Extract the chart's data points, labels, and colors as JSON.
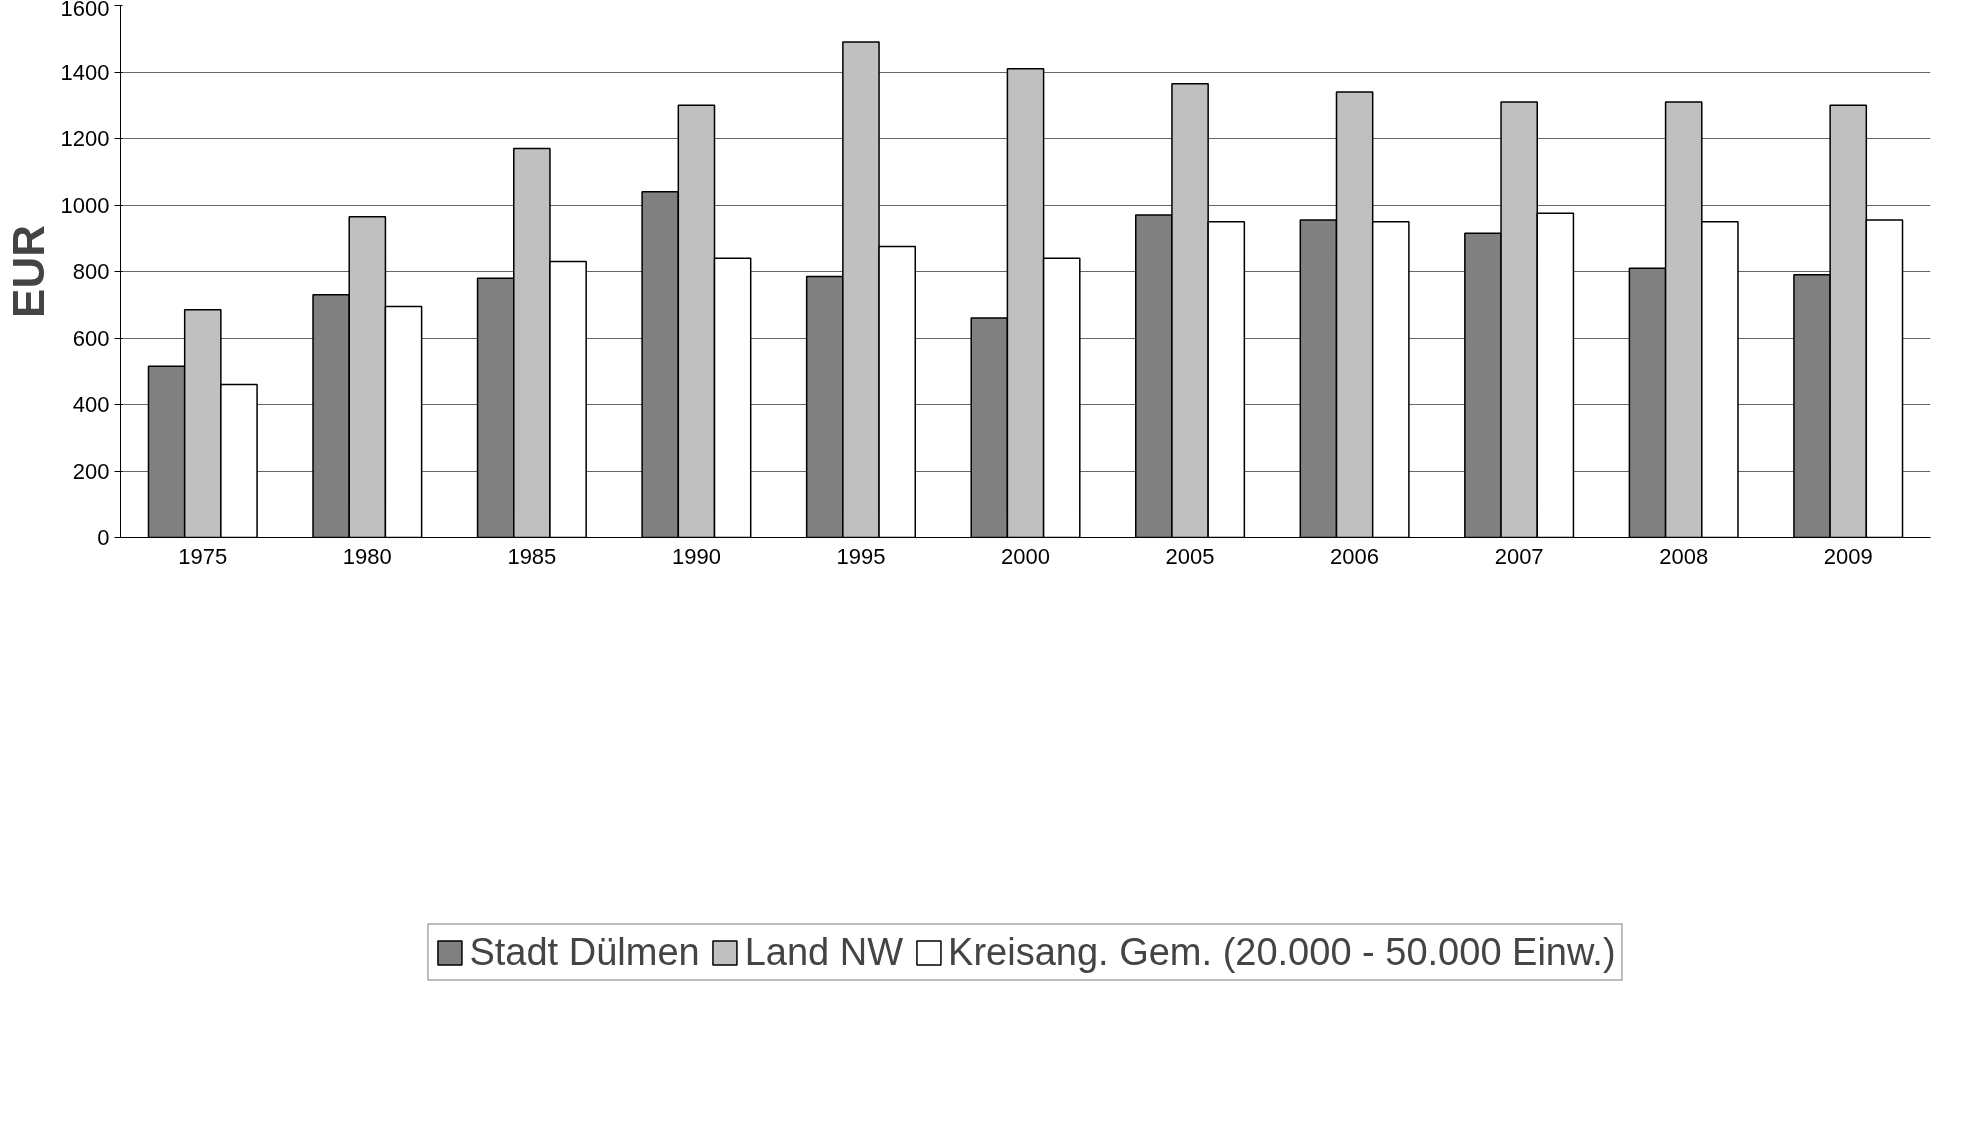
{
  "chart_data": {
    "type": "bar",
    "ylabel": "EUR",
    "categories": [
      "1975",
      "1980",
      "1985",
      "1990",
      "1995",
      "2000",
      "2005",
      "2006",
      "2007",
      "2008",
      "2009"
    ],
    "series": [
      {
        "name": "Stadt Dülmen",
        "color": "#808080",
        "values": [
          515,
          730,
          780,
          1040,
          785,
          660,
          970,
          955,
          915,
          810,
          790
        ]
      },
      {
        "name": "Land NW",
        "color": "#c0c0c0",
        "values": [
          685,
          965,
          1170,
          1300,
          1490,
          1410,
          1365,
          1340,
          1310,
          1310,
          1300
        ]
      },
      {
        "name": "Kreisang. Gem. (20.000 - 50.000 Einw.)",
        "color": "#ffffff",
        "values": [
          460,
          695,
          830,
          840,
          875,
          840,
          950,
          950,
          975,
          950,
          955
        ]
      }
    ],
    "ylim": [
      0,
      1600
    ],
    "yticks": [
      0,
      200,
      400,
      600,
      800,
      1000,
      1200,
      1400,
      1600
    ],
    "grid": "y",
    "legend": "bottom"
  }
}
